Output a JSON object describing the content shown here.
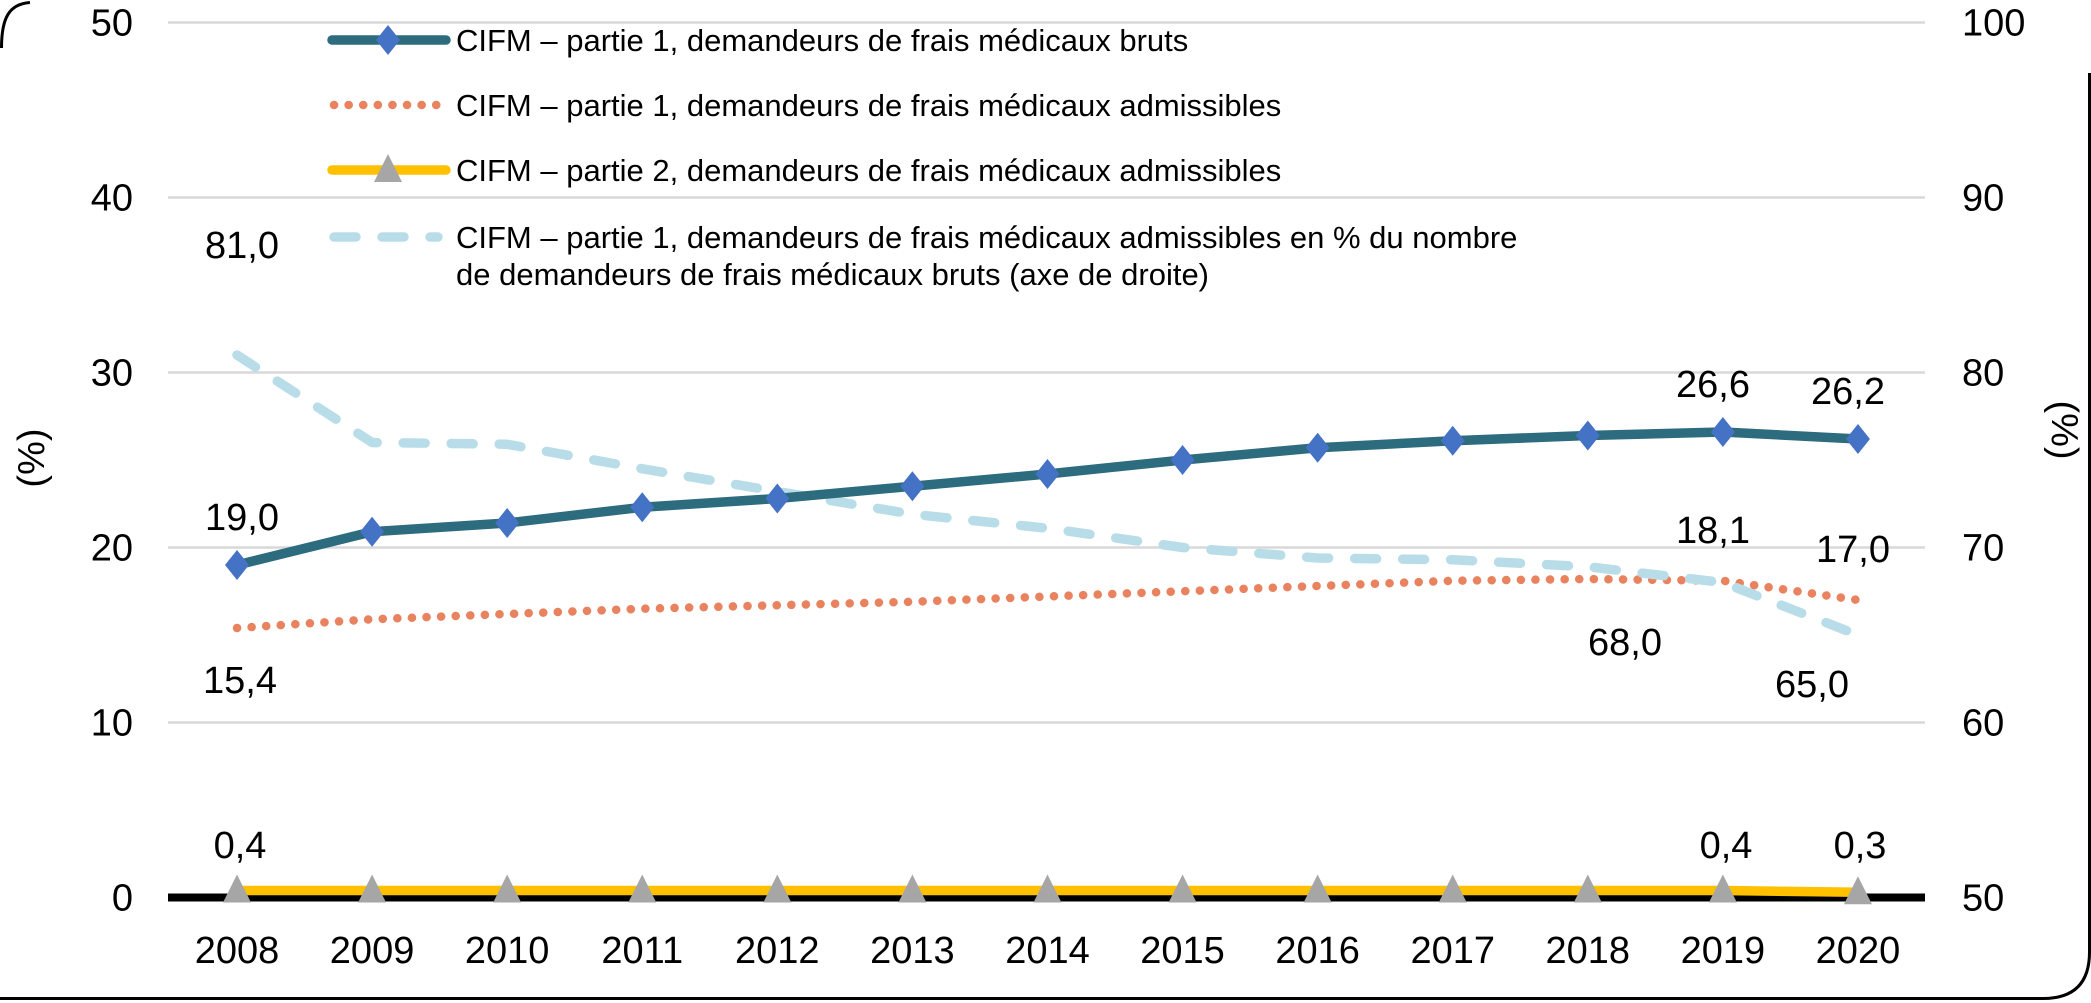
{
  "chart_data": {
    "type": "line",
    "title": "",
    "x_labels": [
      "2008",
      "2009",
      "2010",
      "2011",
      "2012",
      "2013",
      "2014",
      "2015",
      "2016",
      "2017",
      "2018",
      "2019",
      "2020"
    ],
    "left_axis": {
      "title": "(%)",
      "min": 0,
      "max": 50,
      "ticks": [
        50,
        40,
        30,
        20,
        10,
        0
      ],
      "tick_labels": [
        "50",
        "40",
        "30",
        "20",
        "10",
        "0"
      ]
    },
    "right_axis": {
      "title": "(%)",
      "min": 50,
      "max": 100,
      "ticks": [
        100,
        90,
        80,
        70,
        60,
        50
      ],
      "tick_labels": [
        "100",
        "90",
        "80",
        "70",
        "60",
        "50"
      ]
    },
    "grid": true,
    "legend_position": "top-left",
    "colors": {
      "teal_line": "#2D6B7E",
      "diamond_marker": "#4472C4",
      "coral_dotted": "#E9825E",
      "gold_line": "#FFC000",
      "triangle_marker": "#A6A6A6",
      "lightblue_dashed": "#B9DDE8",
      "gridline": "#D8D8D8",
      "axis_line": "#000000"
    },
    "series": [
      {
        "id": "bruts",
        "axis": "left",
        "style": "solid-diamond",
        "color": "#2D6B7E",
        "marker_color": "#4472C4",
        "legend_lines": [
          "CIFM – partie 1, demandeurs de frais médicaux bruts"
        ],
        "values": [
          19.0,
          20.9,
          21.4,
          22.3,
          22.8,
          23.5,
          24.2,
          25.0,
          25.7,
          26.1,
          26.4,
          26.6,
          26.2
        ],
        "point_labels": [
          {
            "i": 0,
            "text": "19,0"
          },
          {
            "i": 11,
            "text": "26,6"
          },
          {
            "i": 12,
            "text": "26,2"
          }
        ]
      },
      {
        "id": "admissibles-p1",
        "axis": "left",
        "style": "dotted",
        "color": "#E9825E",
        "legend_lines": [
          "CIFM – partie 1, demandeurs de frais médicaux admissibles"
        ],
        "values": [
          15.4,
          15.9,
          16.2,
          16.5,
          16.7,
          16.9,
          17.2,
          17.5,
          17.8,
          18.1,
          18.2,
          18.1,
          17.0
        ],
        "point_labels": [
          {
            "i": 0,
            "text": "15,4"
          },
          {
            "i": 11,
            "text": "18,1"
          },
          {
            "i": 12,
            "text": "17,0"
          }
        ]
      },
      {
        "id": "admissibles-p2",
        "axis": "left",
        "style": "solid-triangle",
        "color": "#FFC000",
        "marker_color": "#A6A6A6",
        "legend_lines": [
          "CIFM – partie 2, demandeurs de frais médicaux admissibles"
        ],
        "values": [
          0.4,
          0.4,
          0.4,
          0.4,
          0.4,
          0.4,
          0.4,
          0.4,
          0.4,
          0.4,
          0.4,
          0.4,
          0.3
        ],
        "point_labels": [
          {
            "i": 0,
            "text": "0,4"
          },
          {
            "i": 11,
            "text": "0,4"
          },
          {
            "i": 12,
            "text": "0,3"
          }
        ]
      },
      {
        "id": "ratio",
        "axis": "right",
        "style": "dashed",
        "color": "#B9DDE8",
        "legend_lines": [
          "CIFM – partie 1, demandeurs de frais médicaux admissibles en % du nombre",
          "de demandeurs de frais médicaux bruts (axe de droite)"
        ],
        "values": [
          81.0,
          76.0,
          75.9,
          74.5,
          73.2,
          71.9,
          71.1,
          70.0,
          69.4,
          69.3,
          68.9,
          68.0,
          65.0
        ],
        "point_labels": [
          {
            "i": 0,
            "text": "81,0"
          },
          {
            "i": 11,
            "text": "68,0"
          },
          {
            "i": 12,
            "text": "65,0"
          }
        ]
      }
    ]
  }
}
